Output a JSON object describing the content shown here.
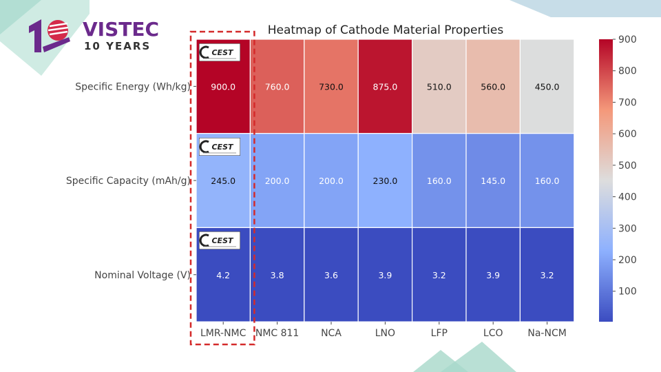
{
  "brand": {
    "name": "VISTEC",
    "tagline": "10 YEARS",
    "badge_text": "CEST"
  },
  "chart_data": {
    "type": "heatmap",
    "title": "Heatmap of Cathode Material Properties",
    "columns": [
      "LMR-NMC",
      "NMC 811",
      "NCA",
      "LNO",
      "LFP",
      "LCO",
      "Na-NCM"
    ],
    "rows": [
      "Specific Energy (Wh/kg)",
      "Specific Capacity (mAh/g)",
      "Nominal Voltage (V)"
    ],
    "values": [
      [
        900.0,
        760.0,
        730.0,
        875.0,
        510.0,
        560.0,
        450.0
      ],
      [
        245.0,
        200.0,
        200.0,
        230.0,
        160.0,
        145.0,
        160.0
      ],
      [
        4.2,
        3.8,
        3.6,
        3.9,
        3.2,
        3.9,
        3.2
      ]
    ],
    "value_labels": [
      [
        "900.0",
        "760.0",
        "730.0",
        "875.0",
        "510.0",
        "560.0",
        "450.0"
      ],
      [
        "245.0",
        "200.0",
        "200.0",
        "230.0",
        "160.0",
        "145.0",
        "160.0"
      ],
      [
        "4.2",
        "3.8",
        "3.6",
        "3.9",
        "3.2",
        "3.9",
        "3.2"
      ]
    ],
    "colormap": "coolwarm",
    "vmin": 3.2,
    "vmax": 900.0,
    "colorbar_ticks": [
      "100",
      "200",
      "300",
      "400",
      "500",
      "600",
      "700",
      "800",
      "900"
    ],
    "highlighted_column": "LMR-NMC",
    "highlight_color": "#d42a2a"
  }
}
